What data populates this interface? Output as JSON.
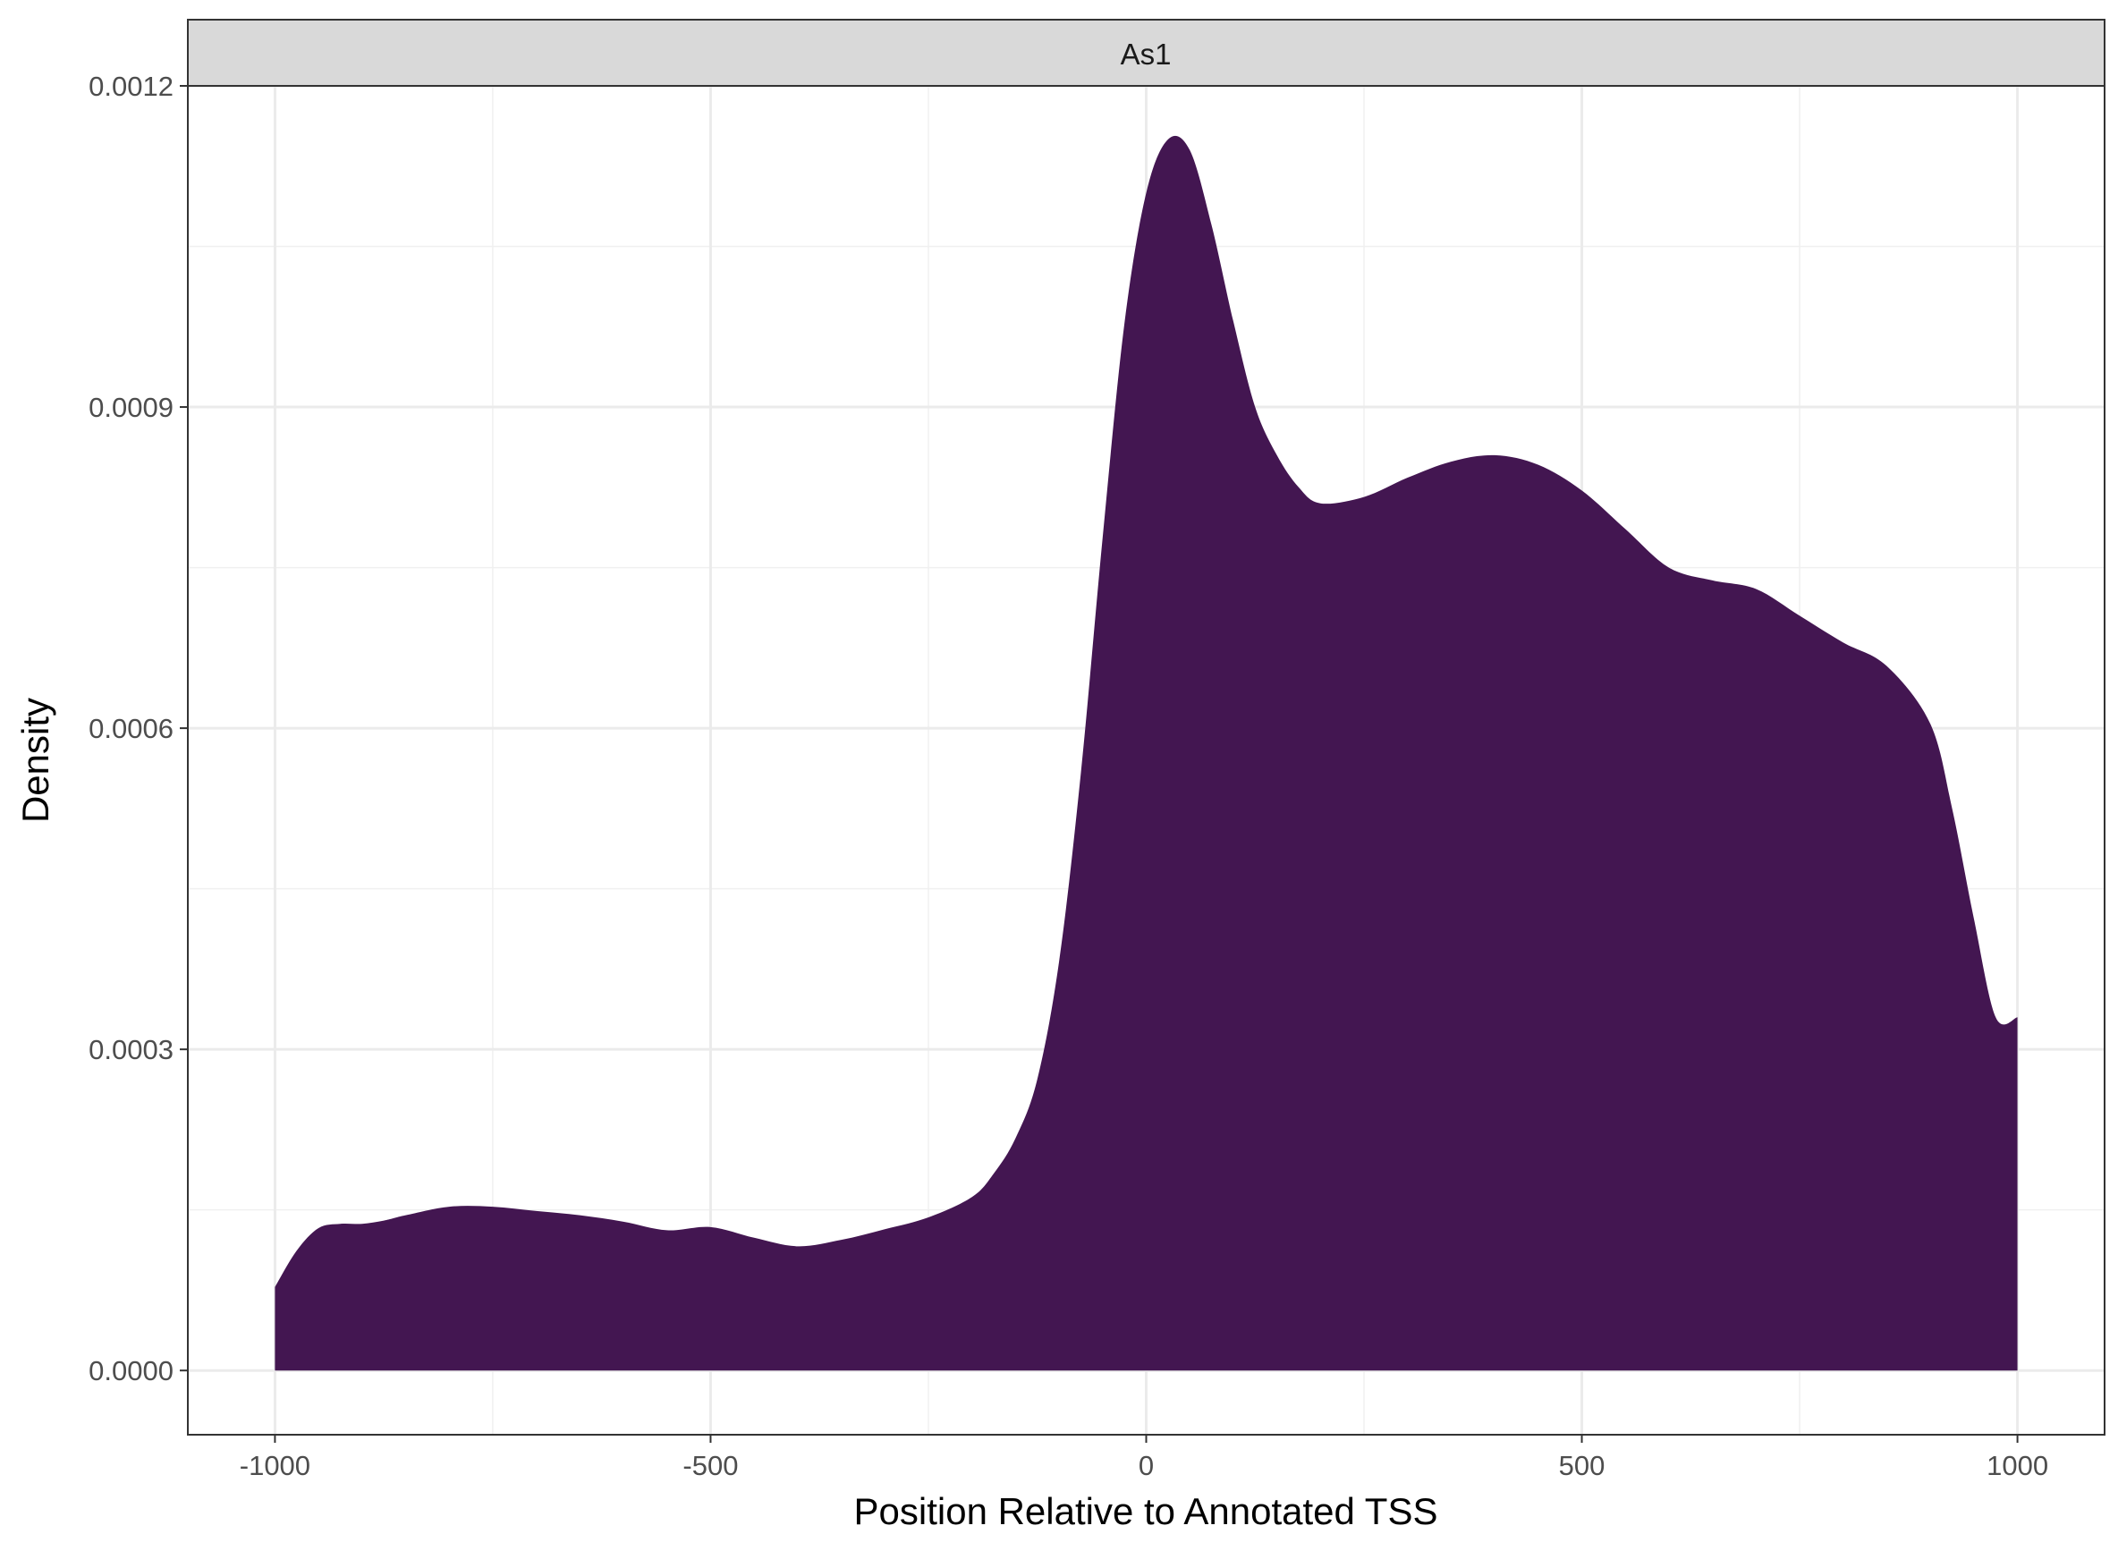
{
  "chart_data": {
    "type": "area",
    "facet_label": "As1",
    "xlabel": "Position Relative to Annotated TSS",
    "ylabel": "Density",
    "xlim": [
      -1100,
      1100
    ],
    "ylim": [
      -6e-05,
      0.0012
    ],
    "x_ticks": [
      -1000,
      -500,
      0,
      500,
      1000
    ],
    "x_tick_labels": [
      "-1000",
      "-500",
      "0",
      "500",
      "1000"
    ],
    "y_ticks": [
      0,
      0.0003,
      0.0006,
      0.0009,
      0.0012
    ],
    "y_tick_labels": [
      "0.0000",
      "0.0003",
      "0.0006",
      "0.0009",
      "0.0012"
    ],
    "grid": true,
    "fill_color": "#431651",
    "series": [
      {
        "x": [
          -1000,
          -975,
          -950,
          -925,
          -900,
          -875,
          -850,
          -800,
          -750,
          -700,
          -650,
          -600,
          -550,
          -500,
          -450,
          -400,
          -350,
          -300,
          -250,
          -200,
          -175,
          -150,
          -125,
          -100,
          -75,
          -50,
          -25,
          0,
          25,
          50,
          75,
          100,
          125,
          150,
          175,
          200,
          250,
          300,
          350,
          400,
          450,
          500,
          550,
          600,
          650,
          700,
          750,
          800,
          850,
          900,
          925,
          950,
          975,
          1000
        ],
        "y": [
          7.8e-05,
          0.000112,
          0.000133,
          0.000137,
          0.000137,
          0.00014,
          0.000145,
          0.000153,
          0.000153,
          0.000149,
          0.000145,
          0.000139,
          0.000131,
          0.000134,
          0.000124,
          0.000116,
          0.000122,
          0.000132,
          0.000143,
          0.000162,
          0.000184,
          0.000217,
          0.000272,
          0.000382,
          0.000558,
          0.000778,
          0.000978,
          0.0011,
          0.00115,
          0.00114,
          0.00107,
          0.00098,
          0.0009,
          0.000855,
          0.000825,
          0.00081,
          0.000816,
          0.000834,
          0.000849,
          0.000855,
          0.000846,
          0.000822,
          0.000786,
          0.00075,
          0.000738,
          0.00073,
          0.000705,
          0.00068,
          0.000658,
          0.000604,
          0.000525,
          0.000422,
          0.00033,
          0.00033
        ]
      }
    ]
  }
}
